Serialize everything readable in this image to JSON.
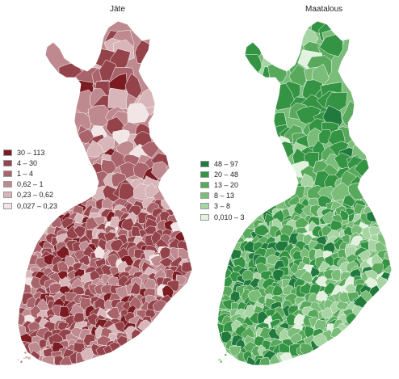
{
  "maps": [
    {
      "id": "jate",
      "title": "Jäte",
      "legend": [
        {
          "label": "30 – 113",
          "color": "#7a1c22"
        },
        {
          "label": "4 – 30",
          "color": "#95434b"
        },
        {
          "label": "1 – 4",
          "color": "#a9646b"
        },
        {
          "label": "0,62 – 1",
          "color": "#bf8a8f"
        },
        {
          "label": "0,23 – 0,62",
          "color": "#d8b5b8"
        },
        {
          "label": "0,027 – 0,23",
          "color": "#f1e5e6"
        }
      ]
    },
    {
      "id": "maatalous",
      "title": "Maatalous",
      "legend": [
        {
          "label": "48 – 97",
          "color": "#1f7a3c"
        },
        {
          "label": "20 – 48",
          "color": "#349443"
        },
        {
          "label": "13 – 20",
          "color": "#58a95c"
        },
        {
          "label": "8 – 13",
          "color": "#79bd79"
        },
        {
          "label": "3 – 8",
          "color": "#a6d5a3"
        },
        {
          "label": "0,010 – 3",
          "color": "#e2f2df"
        }
      ]
    }
  ]
}
